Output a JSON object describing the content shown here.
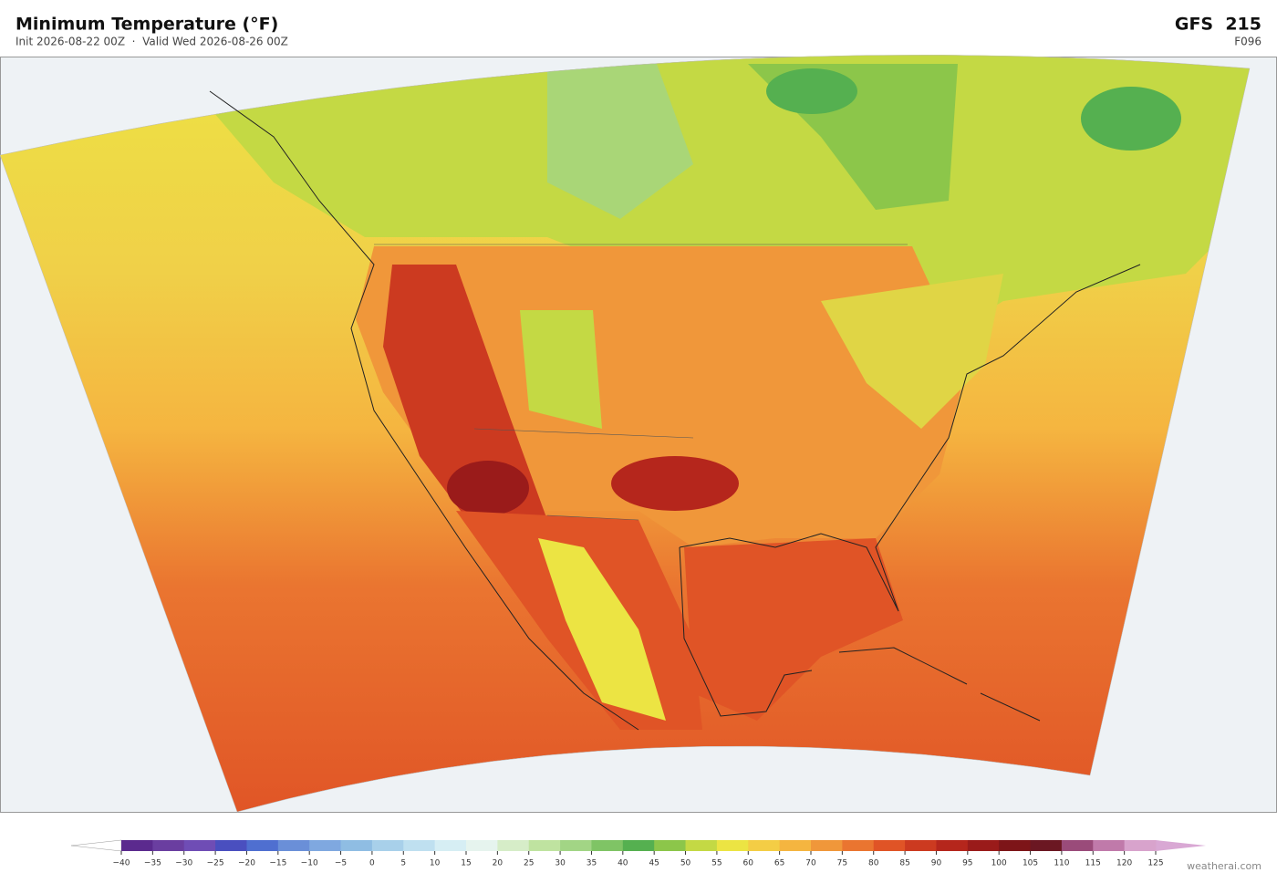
{
  "header": {
    "title": "Minimum Temperature  (°F)",
    "subtitle": "Init 2026-08-22 00Z  ·  Valid Wed 2026-08-26 00Z",
    "model": "GFS  215",
    "forecast_hour": "F096"
  },
  "colorbar": {
    "ticks": [
      {
        "value": -40,
        "label": "−40"
      },
      {
        "value": -35,
        "label": "−35"
      },
      {
        "value": -30,
        "label": "−30"
      },
      {
        "value": -25,
        "label": "−25"
      },
      {
        "value": -20,
        "label": "−20"
      },
      {
        "value": -15,
        "label": "−15"
      },
      {
        "value": -10,
        "label": "−10"
      },
      {
        "value": -5,
        "label": "−5"
      },
      0,
      5,
      10,
      15,
      20,
      25,
      30,
      35,
      40,
      45,
      50,
      55,
      60,
      65,
      70,
      75,
      80,
      85,
      90,
      95,
      100,
      105,
      110,
      115,
      120,
      125
    ],
    "colors": [
      "#5b2a8e",
      "#6a3ea0",
      "#6f4db5",
      "#4a4fbf",
      "#4f6fd0",
      "#6a8fd8",
      "#7fa8e0",
      "#8fbde3",
      "#a8d0ea",
      "#bfe0f0",
      "#d6eef4",
      "#e6f4ee",
      "#d6edc8",
      "#bfe3a0",
      "#a2d585",
      "#7fc465",
      "#55b050",
      "#8cc64a",
      "#c4d944",
      "#ece443",
      "#f4cd45",
      "#f5b540",
      "#f0973a",
      "#ea7530",
      "#e05426",
      "#cc3a20",
      "#b5261c",
      "#9a1b1a",
      "#7d1518",
      "#6b1722",
      "#9a4b7a",
      "#c07aaa",
      "#d8a3cc"
    ],
    "under_color": "#ffffff",
    "over_color": "#d9a8d4"
  },
  "credit": "weatherai.com"
}
